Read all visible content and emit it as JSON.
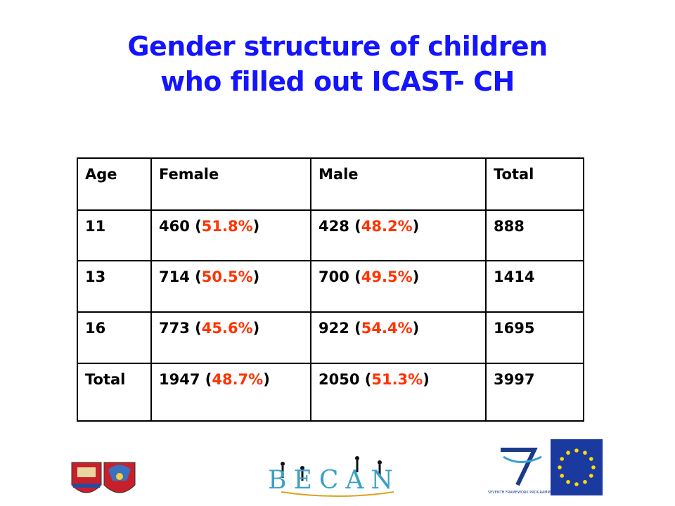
{
  "title": [
    "Gender structure of children",
    "who filled out ICAST- CH"
  ],
  "table": {
    "header": [
      "Age",
      "Female",
      "Male",
      "Total"
    ],
    "rows": [
      [
        [
          "11"
        ],
        [
          "460 (",
          "51.8%",
          ")"
        ],
        [
          "428 (",
          "48.2%",
          ")"
        ],
        [
          "888"
        ]
      ],
      [
        [
          "13"
        ],
        [
          "714 (",
          "50.5%",
          ")"
        ],
        [
          "700 (",
          "49.5%",
          ")"
        ],
        [
          "1414"
        ]
      ],
      [
        [
          "16"
        ],
        [
          "773 (",
          "45.6%",
          ")"
        ],
        [
          "922 (",
          "54.4%",
          ")"
        ],
        [
          "1695"
        ]
      ],
      [
        [
          "Total"
        ],
        [
          "1947 (",
          "48.7%",
          ")"
        ],
        [
          "2050 (",
          "51.3%",
          ")"
        ],
        [
          "3997"
        ]
      ]
    ]
  },
  "logos": {
    "becan": "BECAN",
    "fp7": "SEVENTH FRAMEWORK PROGRAMME"
  }
}
